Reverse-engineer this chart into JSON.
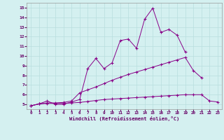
{
  "xlabel": "Windchill (Refroidissement éolien,°C)",
  "background_color": "#d4f0f0",
  "line_color": "#880088",
  "xlim": [
    -0.5,
    23.5
  ],
  "ylim": [
    4.5,
    15.5
  ],
  "xticks": [
    0,
    1,
    2,
    3,
    4,
    5,
    6,
    7,
    8,
    9,
    10,
    11,
    12,
    13,
    14,
    15,
    16,
    17,
    18,
    19,
    20,
    21,
    22,
    23
  ],
  "yticks": [
    5,
    6,
    7,
    8,
    9,
    10,
    11,
    12,
    13,
    14,
    15
  ],
  "line1_y": [
    4.85,
    5.05,
    5.35,
    5.0,
    5.0,
    5.25,
    5.5,
    8.7,
    9.75,
    8.7,
    9.3,
    11.6,
    11.75,
    10.8,
    13.8,
    14.95,
    12.45,
    12.75,
    12.15,
    10.4,
    null,
    null,
    null,
    null
  ],
  "line2_y": [
    4.85,
    5.05,
    5.15,
    5.15,
    5.2,
    5.35,
    6.2,
    6.5,
    6.8,
    7.15,
    7.5,
    7.8,
    8.1,
    8.35,
    8.6,
    8.85,
    9.1,
    9.35,
    9.6,
    9.85,
    8.5,
    7.75,
    null,
    null
  ],
  "line3_y": [
    4.85,
    5.05,
    5.1,
    5.1,
    5.1,
    5.15,
    5.2,
    5.3,
    5.4,
    5.5,
    5.55,
    5.6,
    5.65,
    5.7,
    5.75,
    5.8,
    5.85,
    5.9,
    5.95,
    6.0,
    6.0,
    6.0,
    5.35,
    5.25
  ]
}
